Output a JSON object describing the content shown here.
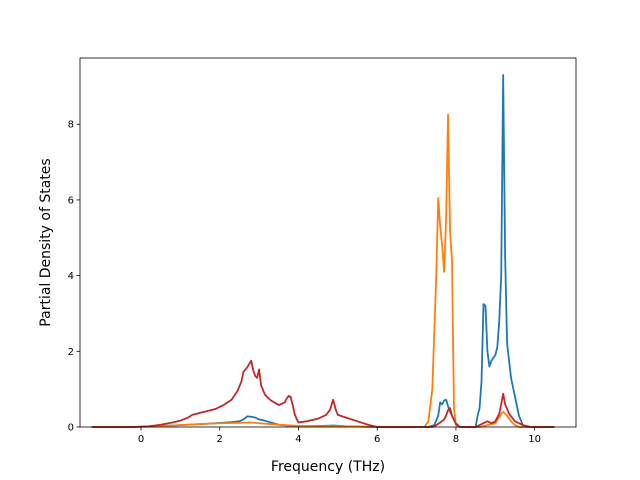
{
  "chart_data": {
    "type": "line",
    "title": "",
    "xlabel": "Frequency (THz)",
    "ylabel": "Partial Density of States",
    "xlim": [
      -1.55,
      11.05
    ],
    "ylim": [
      0,
      9.75
    ],
    "xticks": [
      0,
      2,
      4,
      6,
      8,
      10
    ],
    "yticks": [
      0,
      2,
      4,
      6,
      8
    ],
    "grid": false,
    "legend": "none",
    "series": [
      {
        "color": "#1f77b4",
        "points": [
          [
            -1.25,
            0
          ],
          [
            -0.2,
            0
          ],
          [
            0.3,
            0.02
          ],
          [
            1.0,
            0.05
          ],
          [
            1.6,
            0.08
          ],
          [
            2.2,
            0.12
          ],
          [
            2.5,
            0.15
          ],
          [
            2.6,
            0.2
          ],
          [
            2.7,
            0.28
          ],
          [
            2.8,
            0.27
          ],
          [
            2.9,
            0.25
          ],
          [
            3.0,
            0.2
          ],
          [
            3.1,
            0.18
          ],
          [
            3.3,
            0.12
          ],
          [
            3.5,
            0.06
          ],
          [
            3.7,
            0.04
          ],
          [
            3.9,
            0.03
          ],
          [
            4.2,
            0.02
          ],
          [
            4.6,
            0.03
          ],
          [
            4.9,
            0.04
          ],
          [
            5.2,
            0.02
          ],
          [
            5.6,
            0.01
          ],
          [
            6.0,
            0
          ],
          [
            7.3,
            0
          ],
          [
            7.45,
            0.05
          ],
          [
            7.55,
            0.3
          ],
          [
            7.6,
            0.65
          ],
          [
            7.65,
            0.6
          ],
          [
            7.7,
            0.7
          ],
          [
            7.75,
            0.72
          ],
          [
            7.8,
            0.55
          ],
          [
            7.85,
            0.4
          ],
          [
            7.9,
            0.3
          ],
          [
            8.0,
            0.1
          ],
          [
            8.1,
            0
          ],
          [
            8.5,
            0
          ],
          [
            8.55,
            0.3
          ],
          [
            8.6,
            0.5
          ],
          [
            8.65,
            1.2
          ],
          [
            8.7,
            3.25
          ],
          [
            8.75,
            3.2
          ],
          [
            8.8,
            2.0
          ],
          [
            8.85,
            1.6
          ],
          [
            8.9,
            1.75
          ],
          [
            9.0,
            1.9
          ],
          [
            9.05,
            2.1
          ],
          [
            9.1,
            2.8
          ],
          [
            9.15,
            4.0
          ],
          [
            9.2,
            9.3
          ],
          [
            9.25,
            4.5
          ],
          [
            9.3,
            2.2
          ],
          [
            9.4,
            1.3
          ],
          [
            9.5,
            0.8
          ],
          [
            9.6,
            0.3
          ],
          [
            9.7,
            0.05
          ],
          [
            9.8,
            0
          ],
          [
            10.5,
            0
          ]
        ]
      },
      {
        "color": "#ff7f0e",
        "points": [
          [
            -1.25,
            0
          ],
          [
            -0.2,
            0
          ],
          [
            0.3,
            0.01
          ],
          [
            1.0,
            0.05
          ],
          [
            1.5,
            0.08
          ],
          [
            2.0,
            0.1
          ],
          [
            2.5,
            0.11
          ],
          [
            2.8,
            0.12
          ],
          [
            3.0,
            0.1
          ],
          [
            3.5,
            0.06
          ],
          [
            4.0,
            0.03
          ],
          [
            4.5,
            0.02
          ],
          [
            5.0,
            0.02
          ],
          [
            5.5,
            0.01
          ],
          [
            6.0,
            0
          ],
          [
            7.2,
            0
          ],
          [
            7.3,
            0.15
          ],
          [
            7.4,
            1.0
          ],
          [
            7.45,
            2.5
          ],
          [
            7.5,
            4.0
          ],
          [
            7.55,
            6.05
          ],
          [
            7.6,
            5.3
          ],
          [
            7.65,
            4.8
          ],
          [
            7.7,
            4.1
          ],
          [
            7.75,
            5.5
          ],
          [
            7.8,
            8.25
          ],
          [
            7.85,
            5.2
          ],
          [
            7.9,
            4.4
          ],
          [
            7.95,
            0.5
          ],
          [
            8.0,
            0.05
          ],
          [
            8.1,
            0
          ],
          [
            8.6,
            0
          ],
          [
            8.8,
            0.05
          ],
          [
            9.0,
            0.1
          ],
          [
            9.1,
            0.25
          ],
          [
            9.15,
            0.35
          ],
          [
            9.2,
            0.4
          ],
          [
            9.3,
            0.3
          ],
          [
            9.4,
            0.15
          ],
          [
            9.5,
            0.05
          ],
          [
            9.6,
            0
          ],
          [
            10.5,
            0
          ]
        ]
      },
      {
        "color": "#c0282a",
        "points": [
          [
            -1.25,
            0
          ],
          [
            -0.2,
            0
          ],
          [
            0.2,
            0.02
          ],
          [
            0.5,
            0.06
          ],
          [
            0.8,
            0.12
          ],
          [
            1.0,
            0.17
          ],
          [
            1.2,
            0.25
          ],
          [
            1.3,
            0.32
          ],
          [
            1.6,
            0.4
          ],
          [
            1.9,
            0.48
          ],
          [
            2.1,
            0.58
          ],
          [
            2.3,
            0.72
          ],
          [
            2.45,
            0.95
          ],
          [
            2.55,
            1.2
          ],
          [
            2.6,
            1.45
          ],
          [
            2.7,
            1.58
          ],
          [
            2.8,
            1.75
          ],
          [
            2.85,
            1.5
          ],
          [
            2.9,
            1.35
          ],
          [
            2.95,
            1.3
          ],
          [
            3.0,
            1.52
          ],
          [
            3.05,
            1.1
          ],
          [
            3.15,
            0.85
          ],
          [
            3.3,
            0.7
          ],
          [
            3.5,
            0.58
          ],
          [
            3.65,
            0.65
          ],
          [
            3.7,
            0.75
          ],
          [
            3.75,
            0.82
          ],
          [
            3.8,
            0.8
          ],
          [
            3.85,
            0.6
          ],
          [
            3.9,
            0.35
          ],
          [
            3.95,
            0.22
          ],
          [
            4.0,
            0.12
          ],
          [
            4.2,
            0.15
          ],
          [
            4.5,
            0.22
          ],
          [
            4.7,
            0.32
          ],
          [
            4.8,
            0.45
          ],
          [
            4.88,
            0.72
          ],
          [
            4.95,
            0.45
          ],
          [
            5.0,
            0.32
          ],
          [
            5.2,
            0.25
          ],
          [
            5.5,
            0.15
          ],
          [
            5.8,
            0.05
          ],
          [
            6.0,
            0
          ],
          [
            7.4,
            0
          ],
          [
            7.5,
            0.05
          ],
          [
            7.6,
            0.12
          ],
          [
            7.7,
            0.2
          ],
          [
            7.75,
            0.3
          ],
          [
            7.8,
            0.45
          ],
          [
            7.85,
            0.5
          ],
          [
            7.9,
            0.3
          ],
          [
            8.0,
            0.08
          ],
          [
            8.1,
            0
          ],
          [
            8.5,
            0
          ],
          [
            8.7,
            0.1
          ],
          [
            8.8,
            0.15
          ],
          [
            8.9,
            0.1
          ],
          [
            9.0,
            0.15
          ],
          [
            9.1,
            0.35
          ],
          [
            9.15,
            0.6
          ],
          [
            9.2,
            0.88
          ],
          [
            9.25,
            0.6
          ],
          [
            9.35,
            0.35
          ],
          [
            9.5,
            0.15
          ],
          [
            9.7,
            0.05
          ],
          [
            9.9,
            0
          ],
          [
            10.5,
            0
          ]
        ]
      }
    ]
  }
}
